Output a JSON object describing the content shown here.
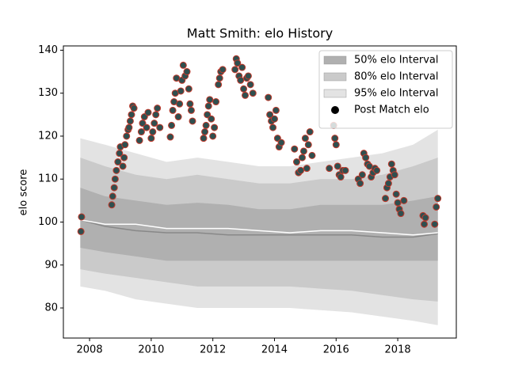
{
  "chart_data": {
    "type": "interval",
    "title": "Matt Smith: elo History",
    "ylabel": "elo score",
    "xlim": [
      2007.15,
      2019.9
    ],
    "ylim": [
      73,
      141
    ],
    "xticks": [
      2008,
      2010,
      2012,
      2014,
      2016,
      2018
    ],
    "yticks": [
      80,
      90,
      100,
      110,
      120,
      130,
      140
    ],
    "legend": "upper right",
    "band_x": [
      2007.7,
      2008.5,
      2009.5,
      2010.5,
      2011.5,
      2012.5,
      2013.5,
      2014.5,
      2015.5,
      2016.5,
      2017.5,
      2018.5,
      2019.3
    ],
    "bands": [
      {
        "name": "50% elo Interval",
        "color": "#b0b0b0",
        "lower": [
          94,
          93,
          92,
          91,
          91,
          91,
          91,
          91,
          91,
          91,
          91,
          91,
          91
        ],
        "upper": [
          108,
          106,
          105,
          104,
          104.5,
          104,
          103,
          103,
          104,
          104,
          104,
          105,
          106
        ]
      },
      {
        "name": "80% elo Interval",
        "color": "#cacaca",
        "lower": [
          89,
          88,
          87,
          86,
          85,
          85,
          85,
          85,
          84.5,
          84,
          83,
          82,
          81.5
        ],
        "upper": [
          115,
          113,
          111,
          110,
          111,
          110,
          109,
          109,
          110,
          110,
          111,
          113,
          115
        ]
      },
      {
        "name": "95% elo Interval",
        "color": "#e3e3e3",
        "lower": [
          85,
          84,
          82,
          81,
          80,
          80,
          80,
          80,
          79.5,
          79,
          78,
          77,
          76
        ],
        "upper": [
          119.5,
          118,
          116,
          114,
          115,
          114,
          113,
          113,
          114,
          115,
          116,
          118,
          121.5
        ]
      }
    ],
    "lines": [
      {
        "color": "#888888",
        "values": [
          100.5,
          99,
          98,
          97.5,
          97.5,
          97,
          97,
          97,
          97,
          97,
          96.5,
          96.5,
          97.3
        ]
      },
      {
        "color": "#ffffff",
        "values": [
          100.5,
          99.5,
          99.5,
          98.5,
          98.5,
          98.5,
          98,
          97.5,
          98,
          98,
          97.5,
          97,
          97.5
        ]
      }
    ],
    "series": [
      {
        "name": "Post Match elo",
        "color": "#2f4f4f",
        "edgecolor": "#c0392b",
        "x": [
          2007.72,
          2007.74,
          2008.72,
          2008.75,
          2008.8,
          2008.83,
          2008.87,
          2008.92,
          2008.97,
          2009.0,
          2009.08,
          2009.12,
          2009.15,
          2009.2,
          2009.25,
          2009.28,
          2009.32,
          2009.36,
          2009.4,
          2009.44,
          2009.62,
          2009.68,
          2009.72,
          2009.78,
          2009.85,
          2009.9,
          2010.0,
          2010.05,
          2010.1,
          2010.15,
          2010.2,
          2010.28,
          2010.62,
          2010.66,
          2010.7,
          2010.74,
          2010.78,
          2010.82,
          2010.88,
          2010.92,
          2010.96,
          2011.0,
          2011.04,
          2011.1,
          2011.16,
          2011.22,
          2011.26,
          2011.3,
          2011.34,
          2011.7,
          2011.74,
          2011.78,
          2011.82,
          2011.86,
          2011.9,
          2011.95,
          2012.0,
          2012.05,
          2012.1,
          2012.18,
          2012.22,
          2012.26,
          2012.32,
          2012.72,
          2012.76,
          2012.8,
          2012.85,
          2012.9,
          2012.95,
          2013.0,
          2013.05,
          2013.1,
          2013.15,
          2013.22,
          2013.3,
          2013.8,
          2013.85,
          2013.9,
          2013.95,
          2014.0,
          2014.05,
          2014.1,
          2014.15,
          2014.22,
          2014.65,
          2014.72,
          2014.78,
          2014.85,
          2014.9,
          2014.95,
          2015.0,
          2015.05,
          2015.1,
          2015.15,
          2015.22,
          2015.78,
          2015.92,
          2015.96,
          2016.0,
          2016.05,
          2016.1,
          2016.15,
          2016.22,
          2016.3,
          2016.72,
          2016.78,
          2016.85,
          2016.9,
          2016.96,
          2017.02,
          2017.08,
          2017.14,
          2017.2,
          2017.26,
          2017.32,
          2017.6,
          2017.65,
          2017.7,
          2017.75,
          2017.8,
          2017.85,
          2017.9,
          2017.95,
          2018.0,
          2018.05,
          2018.1,
          2018.2,
          2018.82,
          2018.86,
          2018.9,
          2019.2,
          2019.25,
          2019.3
        ],
        "values": [
          97.8,
          101.2,
          104,
          106,
          108,
          110,
          112,
          114,
          116,
          117.5,
          113,
          115,
          118,
          120,
          121.5,
          122,
          123.5,
          125,
          127,
          126.5,
          119,
          121,
          123,
          124.5,
          122,
          125.5,
          119.5,
          121,
          123,
          125,
          126.5,
          122,
          119.8,
          122.5,
          126,
          128,
          130,
          133.5,
          124.5,
          127.5,
          130.5,
          133,
          136.5,
          134,
          135,
          131,
          127.5,
          126,
          123.5,
          119.5,
          121,
          122.5,
          125,
          127,
          128.5,
          124,
          120,
          122,
          128,
          132,
          133.5,
          135,
          135.5,
          135.5,
          138,
          137,
          134,
          133,
          136,
          131,
          129.5,
          133.5,
          134,
          132,
          130,
          129,
          125,
          123.5,
          122,
          124,
          126,
          119.5,
          117.5,
          118.5,
          117,
          114,
          111.5,
          112,
          115,
          116.5,
          119.5,
          112.5,
          118,
          121,
          115.5,
          112.5,
          122.5,
          119.5,
          118,
          113,
          111,
          110.5,
          112,
          112,
          110,
          109,
          111,
          116,
          115,
          113.5,
          113,
          110.5,
          111.5,
          112.5,
          112,
          105.5,
          108,
          109,
          110.5,
          113.5,
          112,
          111,
          106.5,
          104.5,
          103,
          102,
          105,
          101.5,
          99.5,
          101,
          99.5,
          103.5,
          105.5
        ]
      }
    ]
  }
}
